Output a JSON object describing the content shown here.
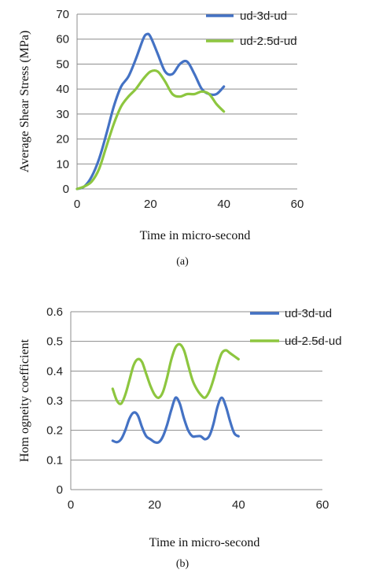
{
  "colors": {
    "series_1": "#4472c4",
    "series_2": "#8dc63f",
    "grid": "#8c8c8c",
    "axis": "#8c8c8c"
  },
  "chart_data": [
    {
      "type": "line",
      "panel_label": "(a)",
      "xlabel": "Time in micro-second",
      "ylabel": "Average Shear Stress (MPa)",
      "xlim": [
        0,
        60
      ],
      "ylim": [
        0,
        70
      ],
      "x_ticks": [
        "0",
        "20",
        "40",
        "60"
      ],
      "y_ticks": [
        "0",
        "10",
        "20",
        "30",
        "40",
        "50",
        "60",
        "70"
      ],
      "grid": "horizontal",
      "legend_position": "top-right",
      "series": [
        {
          "name": "ud-3d-ud",
          "x": [
            0,
            2,
            4,
            6,
            8,
            10,
            12,
            14,
            16,
            18,
            19,
            20,
            22,
            24,
            26,
            28,
            30,
            32,
            34,
            36,
            38,
            40
          ],
          "y": [
            0,
            1,
            5,
            12,
            22,
            33,
            41,
            45,
            52,
            60,
            62,
            61,
            54,
            47,
            46,
            50,
            51,
            46,
            40,
            38,
            38,
            41
          ]
        },
        {
          "name": "ud-2.5d-ud",
          "x": [
            0,
            2,
            4,
            6,
            8,
            10,
            12,
            14,
            16,
            18,
            20,
            22,
            24,
            26,
            28,
            30,
            32,
            34,
            36,
            38,
            40
          ],
          "y": [
            0,
            1,
            3,
            8,
            17,
            26,
            33,
            37,
            40,
            44,
            47,
            47,
            43,
            38,
            37,
            38,
            38,
            39,
            38,
            34,
            31
          ]
        }
      ]
    },
    {
      "type": "line",
      "panel_label": "(b)",
      "xlabel": "Time in micro-second",
      "ylabel": "Hom ogneity coefficient",
      "xlim": [
        0,
        60
      ],
      "ylim": [
        0,
        0.6
      ],
      "x_ticks": [
        "0",
        "20",
        "40",
        "60"
      ],
      "y_ticks": [
        "0",
        "0.1",
        "0.2",
        "0.3",
        "0.4",
        "0.5",
        "0.6"
      ],
      "grid": "horizontal",
      "legend_position": "top-right",
      "series": [
        {
          "name": "ud-3d-ud",
          "x": [
            10,
            11,
            12,
            13,
            14,
            15,
            16,
            17,
            18,
            19,
            20,
            21,
            22,
            23,
            24,
            25,
            26,
            27,
            28,
            29,
            30,
            31,
            32,
            33,
            34,
            35,
            36,
            37,
            38,
            39,
            40
          ],
          "y": [
            0.165,
            0.16,
            0.17,
            0.2,
            0.24,
            0.26,
            0.25,
            0.21,
            0.18,
            0.17,
            0.16,
            0.16,
            0.18,
            0.22,
            0.27,
            0.31,
            0.29,
            0.24,
            0.2,
            0.18,
            0.18,
            0.18,
            0.17,
            0.18,
            0.22,
            0.28,
            0.31,
            0.28,
            0.23,
            0.19,
            0.18
          ]
        },
        {
          "name": "ud-2.5d-ud",
          "x": [
            10,
            11,
            12,
            13,
            14,
            15,
            16,
            17,
            18,
            19,
            20,
            21,
            22,
            23,
            24,
            25,
            26,
            27,
            28,
            29,
            30,
            31,
            32,
            33,
            34,
            35,
            36,
            37,
            38,
            39,
            40
          ],
          "y": [
            0.34,
            0.3,
            0.29,
            0.32,
            0.37,
            0.42,
            0.44,
            0.43,
            0.39,
            0.35,
            0.32,
            0.31,
            0.33,
            0.38,
            0.44,
            0.48,
            0.49,
            0.47,
            0.42,
            0.37,
            0.34,
            0.32,
            0.31,
            0.33,
            0.37,
            0.42,
            0.46,
            0.47,
            0.46,
            0.45,
            0.44
          ]
        }
      ]
    }
  ]
}
